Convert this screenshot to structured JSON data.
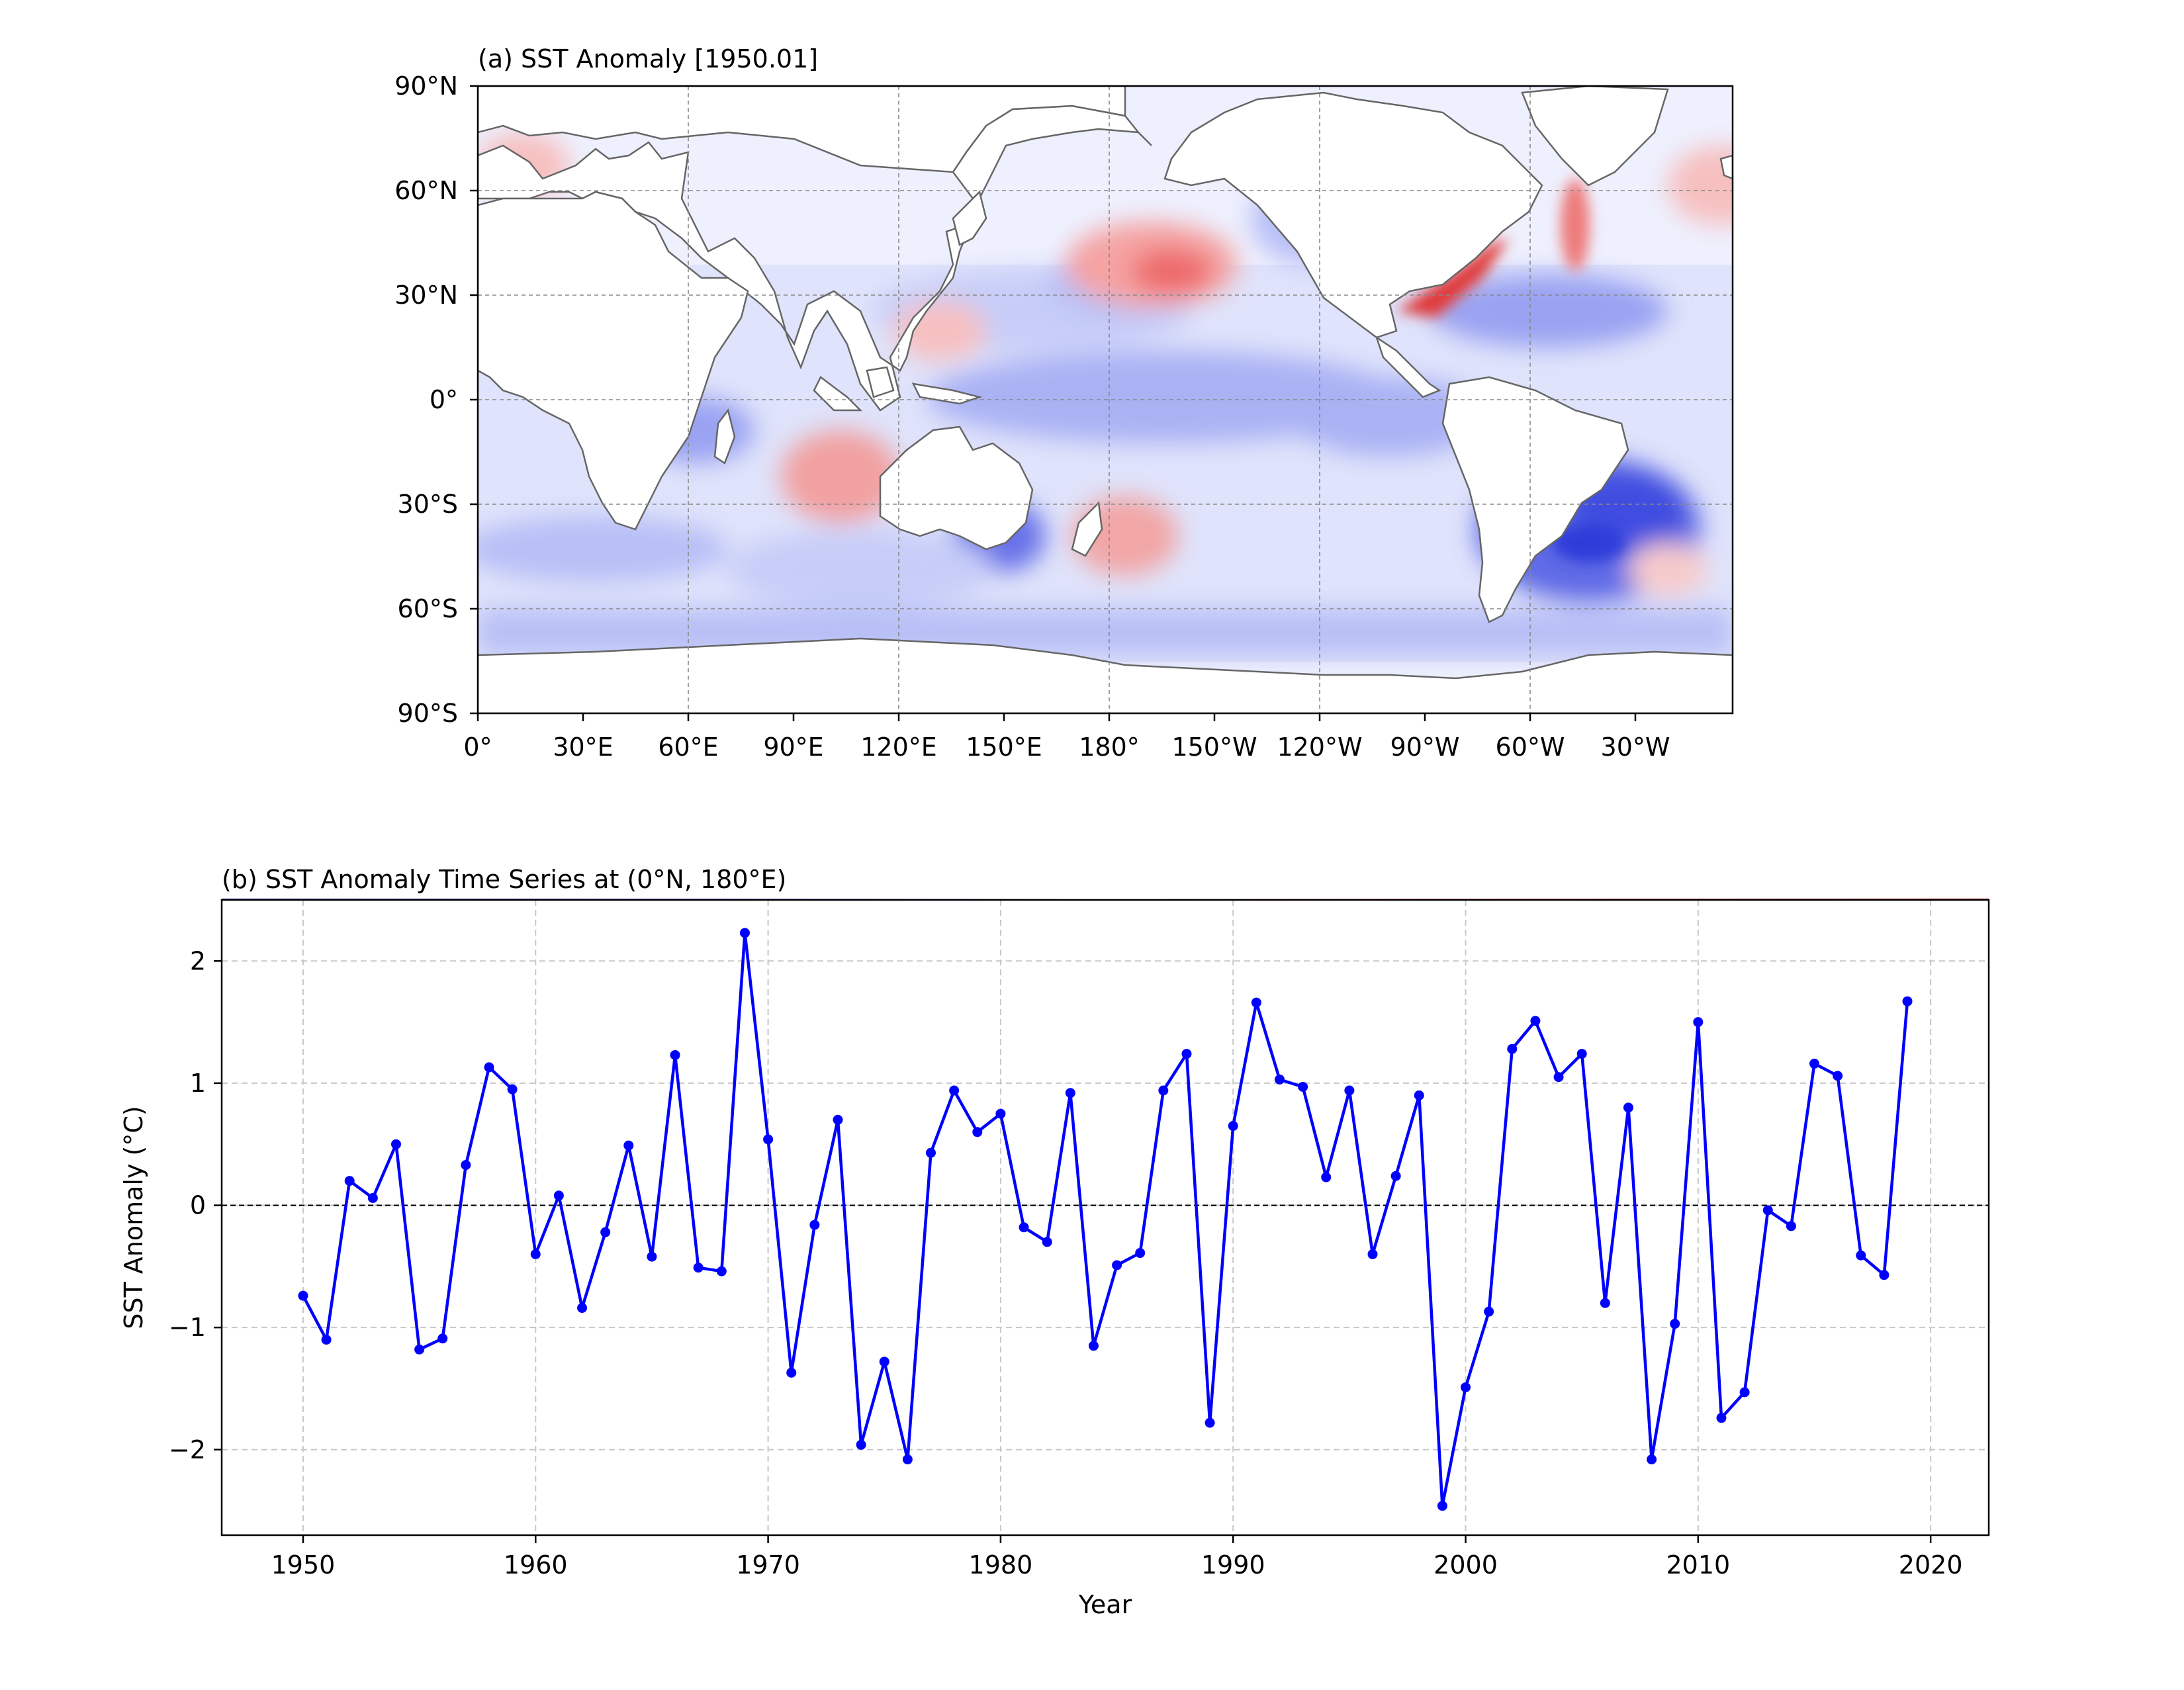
{
  "map_panel": {
    "title": "(a) SST Anomaly [1950.01]",
    "lat_ticks": [
      "90°N",
      "60°N",
      "30°N",
      "0°",
      "30°S",
      "60°S",
      "90°S"
    ],
    "lon_ticks": [
      "0°",
      "30°E",
      "60°E",
      "90°E",
      "120°E",
      "150°E",
      "180°",
      "150°W",
      "120°W",
      "90°W",
      "60°W",
      "30°W"
    ],
    "colormap": {
      "negative": "#0000ff",
      "neutral": "#ffffff",
      "positive": "#ff0000"
    },
    "coastline_color": "#666666"
  },
  "chart_data": {
    "type": "line",
    "title": "(b) SST Anomaly Time Series at (0°N, 180°E)",
    "xlabel": "Year",
    "ylabel": "SST Anomaly (°C)",
    "xlim": [
      1946.5,
      2022.5
    ],
    "ylim": [
      -2.7,
      2.5
    ],
    "xticks": [
      1950,
      1960,
      1970,
      1980,
      1990,
      2000,
      2010,
      2020
    ],
    "yticks": [
      -2,
      -1,
      0,
      1,
      2
    ],
    "ytick_labels": [
      "−2",
      "−1",
      "0",
      "1",
      "2"
    ],
    "xtick_labels": [
      "1950",
      "1960",
      "1970",
      "1980",
      "1990",
      "2000",
      "2010",
      "2020"
    ],
    "grid": true,
    "zero_line": true,
    "series": [
      {
        "color": "#0000ff",
        "x": [
          1950,
          1951,
          1952,
          1953,
          1954,
          1955,
          1956,
          1957,
          1958,
          1959,
          1960,
          1961,
          1962,
          1963,
          1964,
          1965,
          1966,
          1967,
          1968,
          1969,
          1970,
          1971,
          1972,
          1973,
          1974,
          1975,
          1976,
          1977,
          1978,
          1979,
          1980,
          1981,
          1982,
          1983,
          1984,
          1985,
          1986,
          1987,
          1988,
          1989,
          1990,
          1991,
          1992,
          1993,
          1994,
          1995,
          1996,
          1997,
          1998,
          1999,
          2000,
          2001,
          2002,
          2003,
          2004,
          2005,
          2006,
          2007,
          2008,
          2009,
          2010,
          2011,
          2012,
          2013,
          2014,
          2015,
          2016,
          2017,
          2018,
          2019
        ],
        "y": [
          -0.74,
          -1.1,
          0.2,
          0.06,
          0.5,
          -1.18,
          -1.09,
          0.33,
          1.13,
          0.95,
          -0.4,
          0.08,
          -0.84,
          -0.22,
          0.49,
          -0.42,
          1.23,
          -0.51,
          -0.54,
          2.23,
          0.54,
          -1.37,
          -0.16,
          0.7,
          -1.96,
          -1.28,
          -2.08,
          0.43,
          0.94,
          0.6,
          0.75,
          -0.18,
          -0.3,
          0.92,
          -1.15,
          -0.49,
          -0.39,
          0.94,
          1.24,
          -1.78,
          0.65,
          1.66,
          1.03,
          0.97,
          0.23,
          0.94,
          -0.4,
          0.24,
          0.9,
          -2.46,
          -1.49,
          -0.87,
          1.28,
          1.51,
          1.05,
          1.24,
          -0.8,
          0.8,
          -2.08,
          -0.97,
          1.5,
          -1.74,
          -1.53,
          -0.04,
          -0.17,
          1.16,
          1.06,
          -0.41,
          -0.57,
          1.67
        ]
      }
    ]
  }
}
